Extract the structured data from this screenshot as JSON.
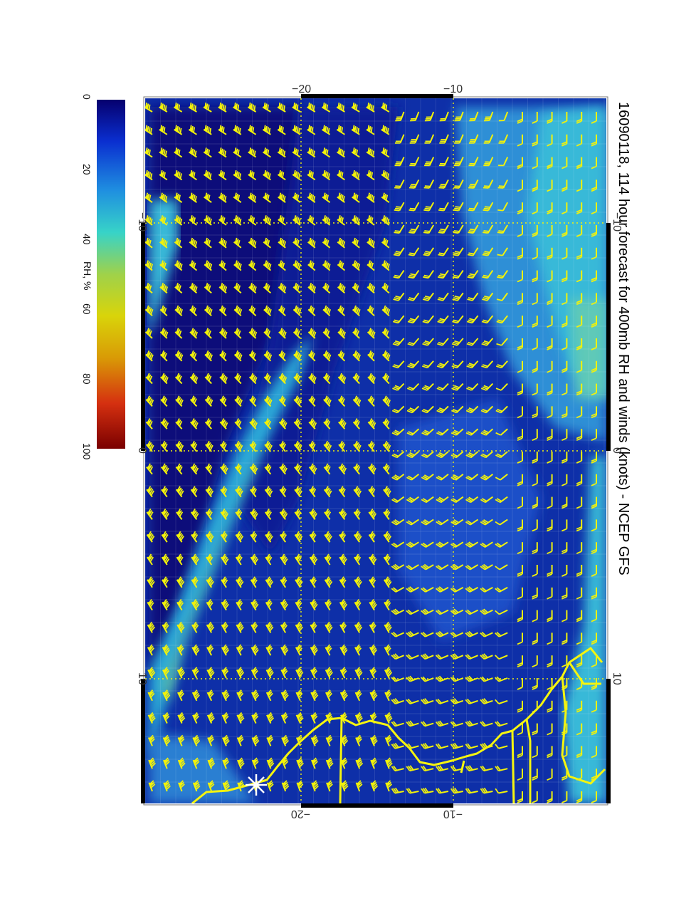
{
  "title": "16090118, 114 hour forecast for 400mb RH and winds (knots) - NCEP GFS",
  "colorbar": {
    "label": "RH, %",
    "ticks": [
      "0",
      "20",
      "40",
      "60",
      "80",
      "100"
    ],
    "stops": [
      "#06006e",
      "#0a2fd0",
      "#1f8fe0",
      "#37d3c8",
      "#9fd24a",
      "#d9d40a",
      "#d99a06",
      "#d53010",
      "#7a0000"
    ]
  },
  "map": {
    "ocean_color": "#0e2fa8",
    "barb_color": "#f2f20a",
    "coast_color": "#f5f50f",
    "grid_color": "#f2f20a",
    "top_axis_labels": [
      "−20",
      "−10"
    ],
    "bottom_axis_labels": [
      "−20",
      "−10"
    ],
    "left_axis_labels": [
      "−10",
      "0",
      "10"
    ],
    "right_axis_labels": [
      "−10",
      "0",
      "10"
    ]
  }
}
